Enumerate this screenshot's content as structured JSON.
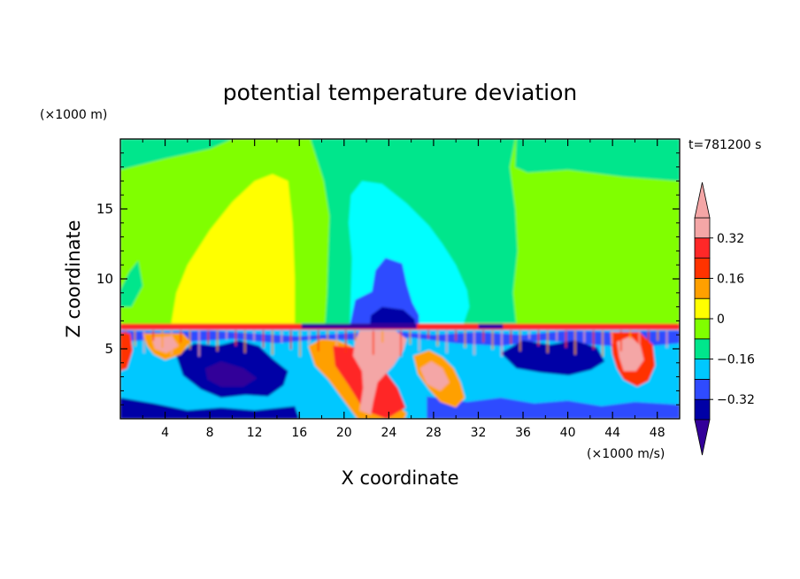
{
  "chart_data": {
    "type": "contour",
    "title": "potential temperature deviation",
    "xlabel": "X coordinate",
    "ylabel": "Z coordinate",
    "x_unit": "(×1000 m/s)",
    "y_unit": "(×1000 m)",
    "time_label": "t=781200 s",
    "xlim": [
      0,
      50
    ],
    "ylim": [
      0,
      20
    ],
    "x_ticks": [
      4,
      8,
      12,
      16,
      20,
      24,
      28,
      32,
      36,
      40,
      44,
      48
    ],
    "y_ticks": [
      5,
      10,
      15
    ],
    "colorbar": {
      "levels": [
        -0.4,
        -0.32,
        -0.24,
        -0.16,
        -0.08,
        0,
        0.08,
        0.16,
        0.24,
        0.32,
        0.4
      ],
      "labeled_ticks": [
        0.32,
        0.16,
        0,
        -0.16,
        -0.32
      ],
      "labels": [
        "0.32",
        "0.16",
        "0",
        "−0.16",
        "−0.32"
      ],
      "bin_colors": [
        "#330099",
        "#0000a6",
        "#2f4bff",
        "#00c8ff",
        "#00e68c",
        "#80ff00",
        "#ffff00",
        "#ffa000",
        "#ff3300",
        "#ff2828",
        "#f4a6a6"
      ],
      "extend": "both"
    },
    "regions": [
      {
        "name": "upper-background",
        "level": 0.04,
        "color": "#80ff00"
      },
      {
        "name": "warm-lobe-left",
        "level": 0.12,
        "color": "#ffff00",
        "x_range": [
          4.5,
          15.5
        ],
        "z_range": [
          7,
          17.5
        ]
      },
      {
        "name": "near-zero-band-center",
        "level": -0.04,
        "color": "#00e68c",
        "x_range": [
          18,
          35
        ],
        "z_range": [
          7,
          20
        ]
      },
      {
        "name": "cool-column-center",
        "level": -0.12,
        "color": "#00ffff",
        "x_range": [
          20,
          31
        ],
        "z_range": [
          7,
          17
        ]
      },
      {
        "name": "cold-core-center",
        "level": -0.2,
        "color": "#2f4bff",
        "x_range": [
          21,
          27
        ],
        "z_range": [
          7,
          11.5
        ]
      },
      {
        "name": "near-zero-right",
        "level": -0.04,
        "color": "#00e68c",
        "x_range": [
          35,
          50
        ],
        "z_range": [
          13,
          20
        ]
      },
      {
        "name": "inversion-layer",
        "level": 0.3,
        "color": "#ff2828",
        "z_range": [
          6.4,
          6.8
        ]
      },
      {
        "name": "lower-layer-turbulence",
        "level": -0.3,
        "color": "#0000a6",
        "x_range": [
          0,
          50
        ],
        "z_range": [
          0,
          6.4
        ]
      },
      {
        "name": "warm-plume-center",
        "level": 0.4,
        "color": "#f4a6a6",
        "x_range": [
          19,
          27
        ],
        "z_range": [
          0,
          6
        ]
      }
    ]
  }
}
